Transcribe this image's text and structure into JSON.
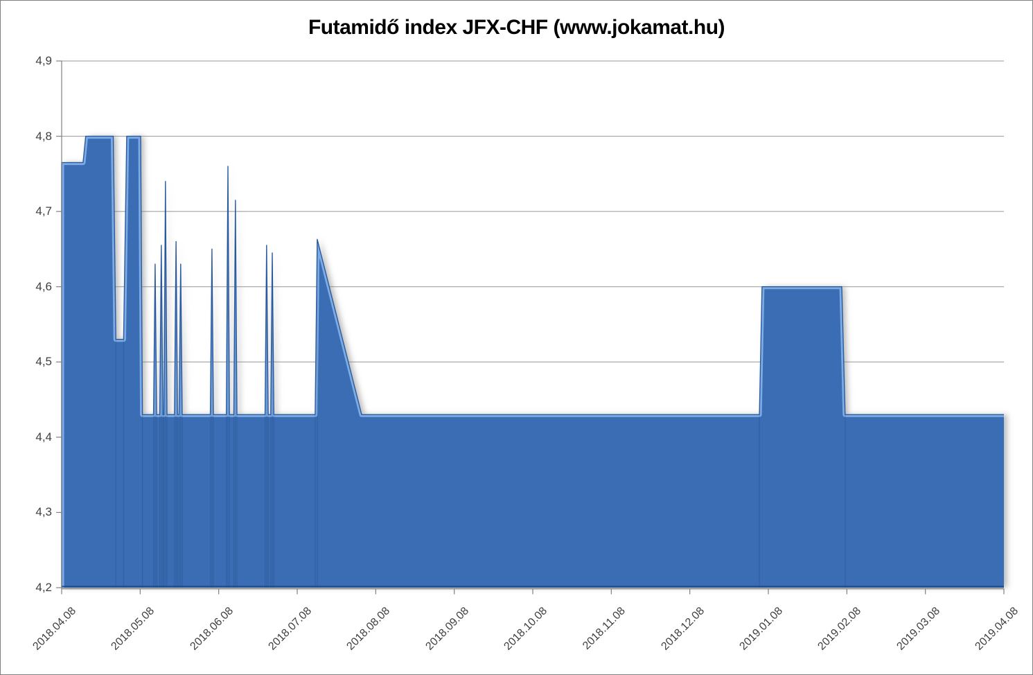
{
  "chart_data": {
    "type": "area",
    "title": "Futamidő index JFX-CHF (www.jokamat.hu)",
    "xlabel": "",
    "ylabel": "",
    "ylim": [
      4.2,
      4.9
    ],
    "grid": true,
    "legend": false,
    "decimal_separator": ",",
    "y_tick_values": [
      4.9,
      4.8,
      4.7,
      4.6,
      4.5,
      4.4,
      4.3,
      4.2
    ],
    "y_tick_labels": [
      "4,9",
      "4,8",
      "4,7",
      "4,6",
      "4,5",
      "4,4",
      "4,3",
      "4,2"
    ],
    "x_tick_labels": [
      "2018.04.08",
      "2018.05.08",
      "2018.06.08",
      "2018.07.08",
      "2018.08.08",
      "2018.09.08",
      "2018.10.08",
      "2018.11.08",
      "2018.12.08",
      "2019.01.08",
      "2019.02.08",
      "2019.03.08",
      "2019.04.08"
    ],
    "x_range_days": [
      0,
      365
    ],
    "baseline_value": 4.43,
    "series_points_day_value": [
      [
        0,
        4.765
      ],
      [
        8.3,
        4.765
      ],
      [
        9.3,
        4.8
      ],
      [
        20.0,
        4.8
      ],
      [
        21.0,
        4.53
      ],
      [
        24.0,
        4.53
      ],
      [
        25.2,
        4.8
      ],
      [
        30.6,
        4.8
      ],
      [
        31.3,
        4.43
      ],
      [
        35.6,
        4.43
      ],
      [
        36.2,
        4.63
      ],
      [
        36.8,
        4.43
      ],
      [
        38.0,
        4.43
      ],
      [
        38.6,
        4.655
      ],
      [
        39.2,
        4.43
      ],
      [
        39.6,
        4.43
      ],
      [
        40.2,
        4.74
      ],
      [
        40.8,
        4.43
      ],
      [
        43.7,
        4.43
      ],
      [
        44.3,
        4.66
      ],
      [
        44.9,
        4.43
      ],
      [
        45.5,
        4.43
      ],
      [
        46.1,
        4.63
      ],
      [
        46.7,
        4.43
      ],
      [
        57.6,
        4.43
      ],
      [
        58.2,
        4.65
      ],
      [
        58.8,
        4.43
      ],
      [
        63.8,
        4.43
      ],
      [
        64.4,
        4.76
      ],
      [
        65.0,
        4.43
      ],
      [
        66.7,
        4.43
      ],
      [
        67.3,
        4.715
      ],
      [
        67.9,
        4.43
      ],
      [
        78.8,
        4.43
      ],
      [
        79.4,
        4.655
      ],
      [
        80.0,
        4.43
      ],
      [
        81.0,
        4.43
      ],
      [
        81.6,
        4.645
      ],
      [
        82.2,
        4.43
      ],
      [
        98.2,
        4.43
      ],
      [
        99.0,
        4.663
      ],
      [
        116.2,
        4.43
      ],
      [
        270.3,
        4.43
      ],
      [
        271.3,
        4.6
      ],
      [
        302.2,
        4.6
      ],
      [
        303.5,
        4.43
      ],
      [
        365,
        4.43
      ]
    ],
    "colors": {
      "area_fill": "#3a6db4",
      "area_highlight": "#85b3ea",
      "area_edge": "#2a5a9e",
      "area_bottom_edge": "#1d4a85",
      "gridline": "#969696",
      "axis_line": "#808080",
      "tick_label": "#3f3f3f",
      "title": "#000000",
      "background": "#ffffff",
      "canvas_border": "#7f7f7f"
    }
  }
}
